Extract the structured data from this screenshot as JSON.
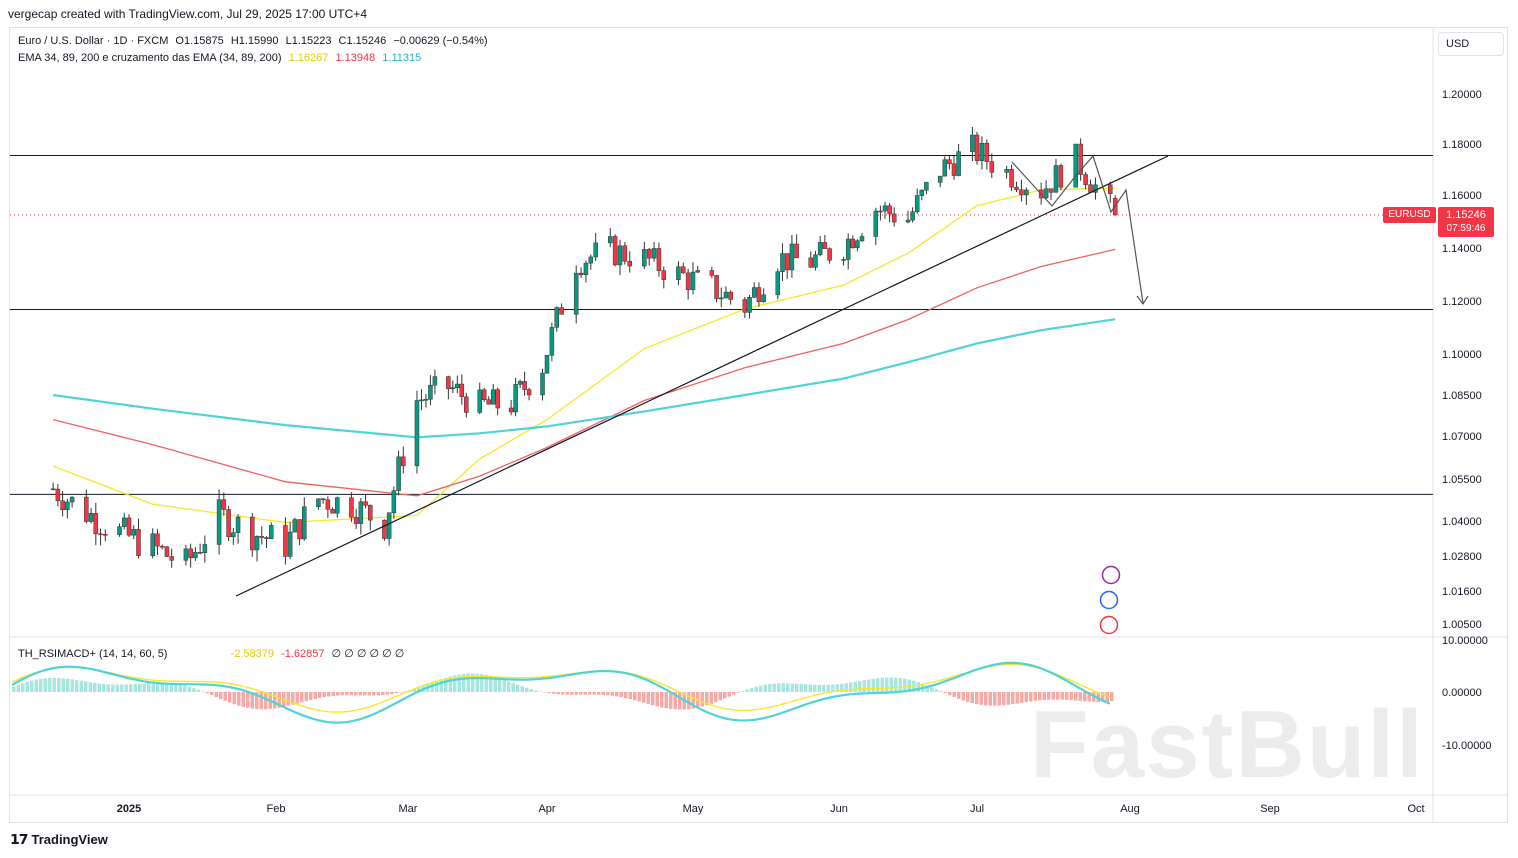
{
  "header": {
    "created_by": "vergecap created with TradingView.com, Jul 29, 2025 17:00 UTC+4"
  },
  "legend": {
    "symbol": "Euro / U.S. Dollar · 1D · FXCM",
    "open": "O1.15875",
    "high": "H1.15990",
    "low": "L1.15223",
    "close": "C1.15246",
    "change": "−0.00629 (−0.54%)",
    "ema_label": "EMA 34, 89, 200 e cruzamento das EMA (34, 89, 200)",
    "ema34": "1.16267",
    "ema89": "1.13948",
    "ema200": "1.11315",
    "indicator_label": "TH_RSIMACD+ (14, 14, 60, 5)",
    "ind_v1": "-2.58379",
    "ind_v2": "-1.62857",
    "ind_rest": "∅ ∅ ∅ ∅ ∅ ∅"
  },
  "currency_label": "USD",
  "price_tag": {
    "symbol": "EURUSD",
    "price": "1.15246",
    "countdown": "07:59:46"
  },
  "footer_brand": "TradingView",
  "watermark": "FastBull",
  "colors": {
    "up": "#089981",
    "down": "#f23645",
    "ema34": "#f5e82a",
    "ema89": "#f0625a",
    "ema200": "#4fd3d7",
    "text": "#131722",
    "grid": "#e0e3eb",
    "accent": "#f23645"
  },
  "chart_data": {
    "type": "line",
    "instrument": "EURUSD",
    "timeframe": "1D",
    "y_ticks": [
      "1.20000",
      "1.18000",
      "1.16000",
      "1.14000",
      "1.12000",
      "1.10000",
      "1.08500",
      "1.07000",
      "1.05500",
      "1.04000",
      "1.02800",
      "1.01600",
      "1.00500"
    ],
    "x_ticks": [
      "2025",
      "Feb",
      "Mar",
      "Apr",
      "May",
      "Jun",
      "Jul",
      "Aug",
      "Sep",
      "Oct"
    ],
    "horizontal_levels": [
      1.1755,
      1.1168,
      1.0495
    ],
    "ohlc_last": {
      "open": 1.15875,
      "high": 1.1599,
      "low": 1.15223,
      "close": 1.15246
    },
    "close_path": [
      [
        "2024-12-16",
        1.0515
      ],
      [
        "2024-12-23",
        1.043
      ],
      [
        "2024-12-30",
        1.036
      ],
      [
        "2025-01-06",
        1.031
      ],
      [
        "2025-01-13",
        1.025
      ],
      [
        "2025-01-20",
        1.042
      ],
      [
        "2025-01-27",
        1.036
      ],
      [
        "2025-02-03",
        1.032
      ],
      [
        "2025-02-10",
        1.048
      ],
      [
        "2025-02-17",
        1.046
      ],
      [
        "2025-02-24",
        1.039
      ],
      [
        "2025-03-03",
        1.083
      ],
      [
        "2025-03-10",
        1.088
      ],
      [
        "2025-03-17",
        1.081
      ],
      [
        "2025-03-24",
        1.082
      ],
      [
        "2025-03-31",
        1.096
      ],
      [
        "2025-04-07",
        1.135
      ],
      [
        "2025-04-14",
        1.139
      ],
      [
        "2025-04-21",
        1.136
      ],
      [
        "2025-04-28",
        1.13
      ],
      [
        "2025-05-05",
        1.125
      ],
      [
        "2025-05-12",
        1.118
      ],
      [
        "2025-05-19",
        1.136
      ],
      [
        "2025-05-26",
        1.135
      ],
      [
        "2025-06-02",
        1.141
      ],
      [
        "2025-06-09",
        1.155
      ],
      [
        "2025-06-16",
        1.151
      ],
      [
        "2025-06-23",
        1.17
      ],
      [
        "2025-06-30",
        1.178
      ],
      [
        "2025-07-07",
        1.169
      ],
      [
        "2025-07-14",
        1.162
      ],
      [
        "2025-07-21",
        1.174
      ],
      [
        "2025-07-29",
        1.15246
      ]
    ],
    "series": [
      {
        "name": "EMA 34",
        "color": "#f5e82a",
        "values": [
          [
            "2024-12-16",
            1.0595
          ],
          [
            "2025-01-06",
            1.046
          ],
          [
            "2025-02-03",
            1.0395
          ],
          [
            "2025-03-03",
            1.042
          ],
          [
            "2025-03-17",
            1.062
          ],
          [
            "2025-04-01",
            1.076
          ],
          [
            "2025-04-21",
            1.102
          ],
          [
            "2025-05-12",
            1.117
          ],
          [
            "2025-06-02",
            1.126
          ],
          [
            "2025-06-16",
            1.138
          ],
          [
            "2025-07-01",
            1.156
          ],
          [
            "2025-07-14",
            1.162
          ],
          [
            "2025-07-29",
            1.16267
          ]
        ]
      },
      {
        "name": "EMA 89",
        "color": "#f0625a",
        "values": [
          [
            "2024-12-16",
            1.076
          ],
          [
            "2025-01-06",
            1.067
          ],
          [
            "2025-02-03",
            1.054
          ],
          [
            "2025-03-03",
            1.049
          ],
          [
            "2025-03-17",
            1.056
          ],
          [
            "2025-04-01",
            1.066
          ],
          [
            "2025-04-21",
            1.083
          ],
          [
            "2025-05-12",
            1.095
          ],
          [
            "2025-06-02",
            1.104
          ],
          [
            "2025-06-16",
            1.113
          ],
          [
            "2025-07-01",
            1.125
          ],
          [
            "2025-07-14",
            1.133
          ],
          [
            "2025-07-29",
            1.13948
          ]
        ]
      },
      {
        "name": "EMA 200",
        "color": "#4fd3d7",
        "values": [
          [
            "2024-12-16",
            1.085
          ],
          [
            "2025-01-06",
            1.08
          ],
          [
            "2025-02-03",
            1.074
          ],
          [
            "2025-03-03",
            1.0695
          ],
          [
            "2025-03-17",
            1.071
          ],
          [
            "2025-04-01",
            1.0735
          ],
          [
            "2025-04-21",
            1.079
          ],
          [
            "2025-05-12",
            1.085
          ],
          [
            "2025-06-02",
            1.091
          ],
          [
            "2025-06-16",
            1.097
          ],
          [
            "2025-07-01",
            1.104
          ],
          [
            "2025-07-14",
            1.109
          ],
          [
            "2025-07-29",
            1.11315
          ]
        ]
      }
    ],
    "indicator": {
      "name": "TH_RSIMACD+",
      "y_ticks": [
        "10.00000",
        "0.00000",
        "-10.00000"
      ]
    }
  }
}
